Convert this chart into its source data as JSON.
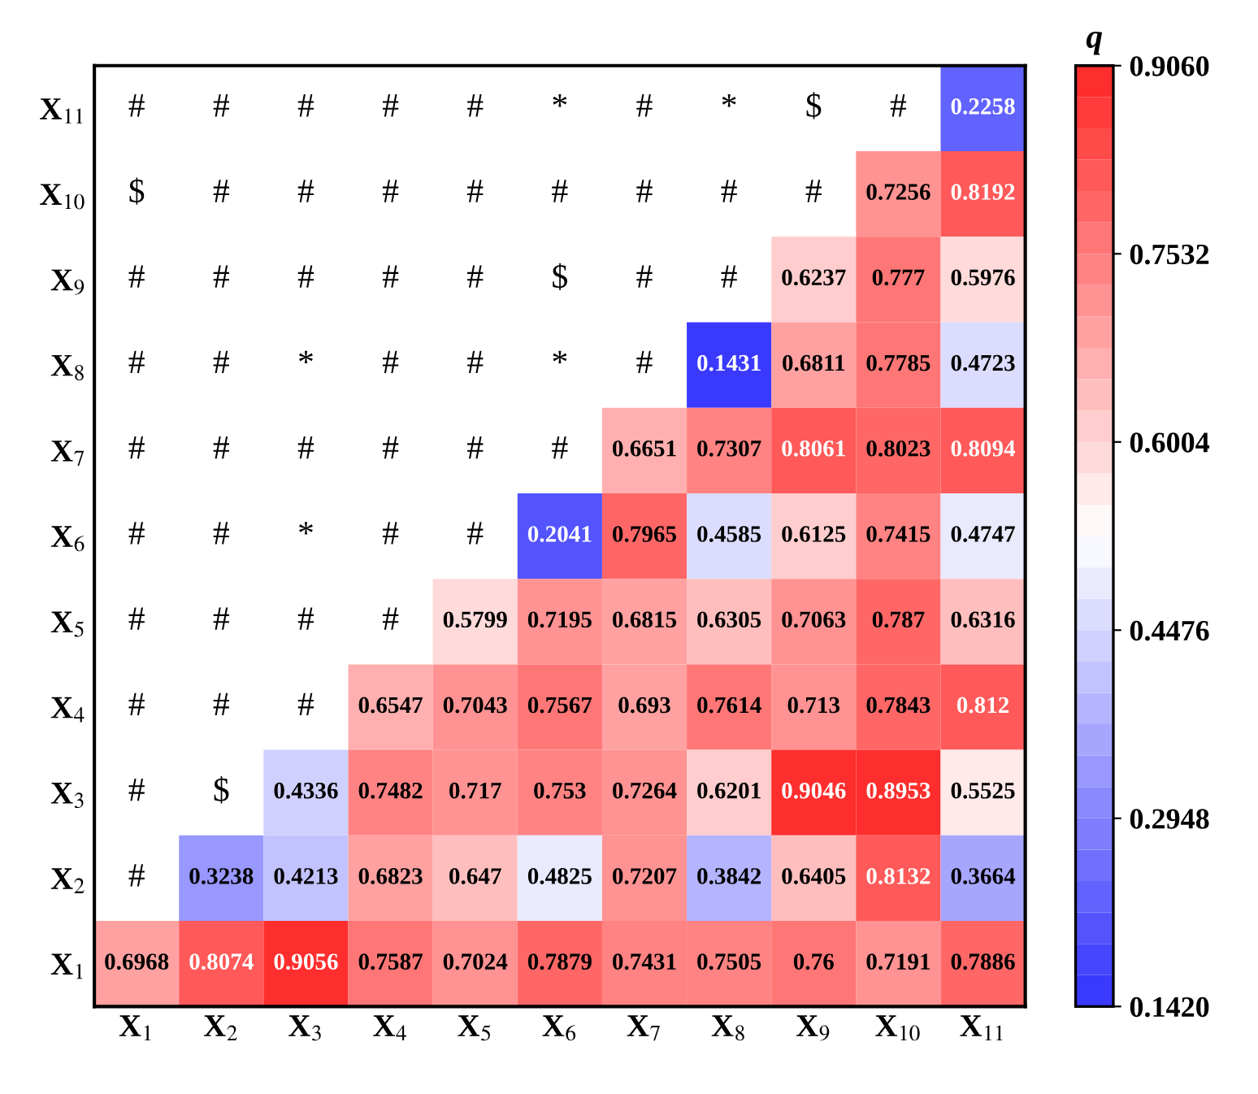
{
  "chart_data": {
    "type": "heatmap",
    "clabel": "q",
    "categories": [
      "X$_{1}$",
      "X$_{2}$",
      "X$_{3}$",
      "X$_{4}$",
      "X$_{5}$",
      "X$_{6}$",
      "X$_{7}$",
      "X$_{8}$",
      "X$_{9}$",
      "X$_{10}$",
      "X$_{11}$"
    ],
    "y_categories": [
      "X$_{11}$",
      "X$_{10}$",
      "X$_{9}$",
      "X$_{8}$",
      "X$_{7}$",
      "X$_{6}$",
      "X$_{5}$",
      "X$_{4}$",
      "X$_{3}$",
      "X$_{2}$",
      "X$_{1}$"
    ],
    "cells": [
      [
        null,
        null,
        null,
        null,
        null,
        null,
        null,
        null,
        null,
        null,
        0.2258
      ],
      [
        null,
        null,
        null,
        null,
        null,
        null,
        null,
        null,
        null,
        0.7256,
        0.8192
      ],
      [
        null,
        null,
        null,
        null,
        null,
        null,
        null,
        null,
        0.6237,
        0.777,
        0.5976
      ],
      [
        null,
        null,
        null,
        null,
        null,
        null,
        null,
        0.1431,
        0.6811,
        0.7785,
        0.4723
      ],
      [
        null,
        null,
        null,
        null,
        null,
        null,
        0.6651,
        0.7307,
        0.8061,
        0.8023,
        0.8094
      ],
      [
        null,
        null,
        null,
        null,
        null,
        0.2041,
        0.7965,
        0.4585,
        0.6125,
        0.7415,
        0.4747
      ],
      [
        null,
        null,
        null,
        null,
        0.5799,
        0.7195,
        0.6815,
        0.6305,
        0.7063,
        0.787,
        0.6316
      ],
      [
        null,
        null,
        null,
        0.6547,
        0.7043,
        0.7567,
        0.693,
        0.7614,
        0.713,
        0.7843,
        0.812
      ],
      [
        null,
        null,
        0.4336,
        0.7482,
        0.717,
        0.753,
        0.7264,
        0.6201,
        0.9046,
        0.8953,
        0.5525
      ],
      [
        null,
        0.3238,
        0.4213,
        0.6823,
        0.647,
        0.4825,
        0.7207,
        0.3842,
        0.6405,
        0.8132,
        0.3664
      ],
      [
        0.6968,
        0.8074,
        0.9056,
        0.7587,
        0.7024,
        0.7879,
        0.7431,
        0.7505,
        0.76,
        0.7191,
        0.7886
      ]
    ],
    "cell_labels": [
      [
        "#",
        "#",
        "#",
        "#",
        "#",
        "*",
        "#",
        "*",
        "$",
        "#",
        "0.2258"
      ],
      [
        "$",
        "#",
        "#",
        "#",
        "#",
        "#",
        "#",
        "#",
        "#",
        "0.7256",
        "0.8192"
      ],
      [
        "#",
        "#",
        "#",
        "#",
        "#",
        "$",
        "#",
        "#",
        "0.6237",
        "0.777",
        "0.5976"
      ],
      [
        "#",
        "#",
        "*",
        "#",
        "#",
        "*",
        "#",
        "0.1431",
        "0.6811",
        "0.7785",
        "0.4723"
      ],
      [
        "#",
        "#",
        "#",
        "#",
        "#",
        "#",
        "0.6651",
        "0.7307",
        "0.8061",
        "0.8023",
        "0.8094"
      ],
      [
        "#",
        "#",
        "*",
        "#",
        "#",
        "0.2041",
        "0.7965",
        "0.4585",
        "0.6125",
        "0.7415",
        "0.4747"
      ],
      [
        "#",
        "#",
        "#",
        "#",
        "0.5799",
        "0.7195",
        "0.6815",
        "0.6305",
        "0.7063",
        "0.787",
        "0.6316"
      ],
      [
        "#",
        "#",
        "#",
        "0.6547",
        "0.7043",
        "0.7567",
        "0.693",
        "0.7614",
        "0.713",
        "0.7843",
        "0.812"
      ],
      [
        "#",
        "$",
        "0.4336",
        "0.7482",
        "0.717",
        "0.753",
        "0.7264",
        "0.6201",
        "0.9046",
        "0.8953",
        "0.5525"
      ],
      [
        "#",
        "0.3238",
        "0.4213",
        "0.6823",
        "0.647",
        "0.4825",
        "0.7207",
        "0.3842",
        "0.6405",
        "0.8132",
        "0.3664"
      ],
      [
        "0.6968",
        "0.8074",
        "0.9056",
        "0.7587",
        "0.7024",
        "0.7879",
        "0.7431",
        "0.7505",
        "0.76",
        "0.7191",
        "0.7886"
      ]
    ],
    "clim": [
      0.142,
      0.906
    ],
    "cticks": [
      {
        "value": 0.142,
        "label": "0.1420"
      },
      {
        "value": 0.2948,
        "label": "0.2948"
      },
      {
        "value": 0.4476,
        "label": "0.4476"
      },
      {
        "value": 0.6004,
        "label": "0.6004"
      },
      {
        "value": 0.7532,
        "label": "0.7532"
      },
      {
        "value": 0.906,
        "label": "0.9060"
      }
    ],
    "data_labels": true,
    "grid": false
  }
}
